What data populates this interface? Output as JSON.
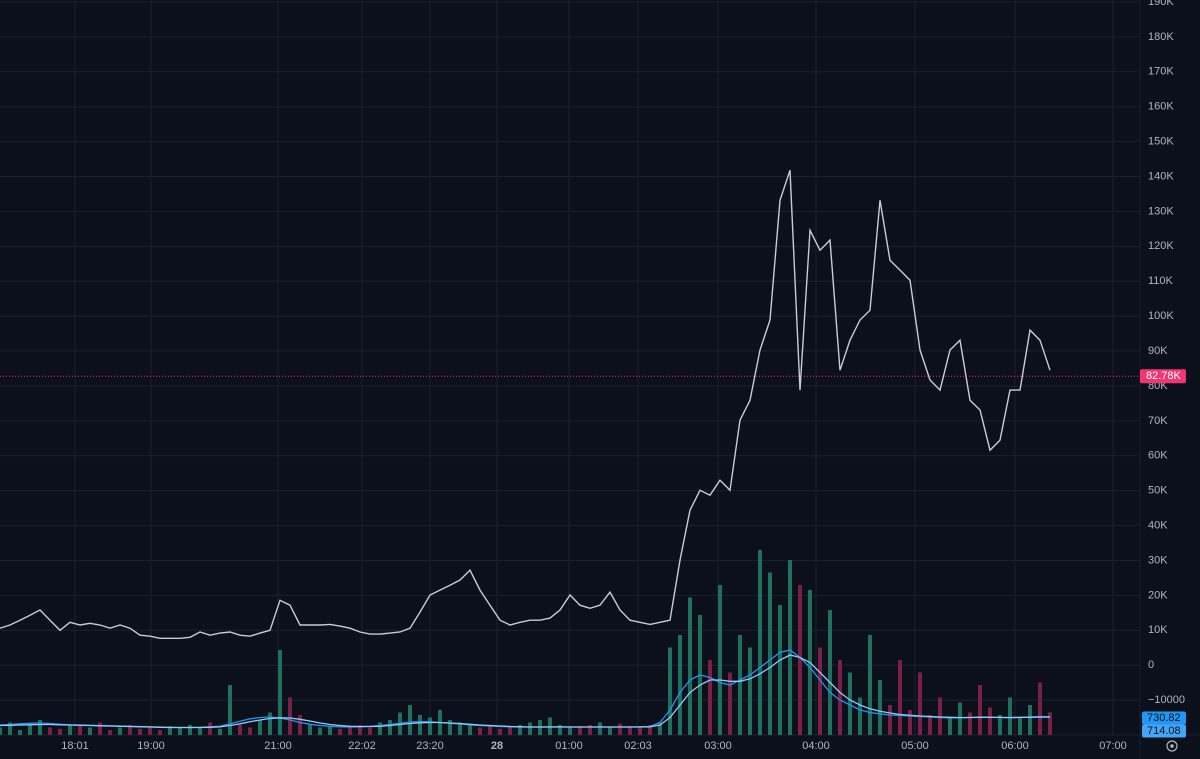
{
  "chart_data": [
    {
      "type": "line",
      "color": "#c8ccd4",
      "x": [
        0,
        1,
        2,
        3,
        4,
        5,
        6,
        7,
        8,
        9,
        10,
        11,
        12,
        13,
        14,
        15,
        16,
        17,
        18,
        19,
        20,
        21,
        22,
        23,
        24,
        25,
        26,
        27,
        28,
        29,
        30,
        31,
        32,
        33,
        34,
        35,
        36,
        37,
        38,
        39,
        40,
        41,
        42,
        43,
        44,
        45,
        46,
        47,
        48,
        49,
        50,
        51,
        52,
        53,
        54,
        55,
        56,
        57,
        58,
        59,
        60,
        61,
        62,
        63,
        64,
        65,
        66,
        67,
        68,
        69,
        70,
        71,
        72,
        73,
        74,
        75,
        76,
        77,
        78,
        79,
        80,
        81,
        82,
        83,
        84,
        85,
        86,
        87,
        88,
        89,
        90,
        91,
        92,
        93,
        94,
        95,
        96,
        97,
        98,
        99,
        100,
        101,
        102,
        103,
        104,
        105
      ],
      "values": [
        10600,
        11500,
        12900,
        14300,
        15800,
        12900,
        10000,
        12300,
        11500,
        12000,
        11500,
        10600,
        11500,
        10600,
        8600,
        8300,
        7700,
        7700,
        7700,
        8000,
        9500,
        8600,
        9200,
        9500,
        8600,
        8300,
        9200,
        10000,
        18600,
        17200,
        11500,
        11500,
        11500,
        11700,
        11200,
        10600,
        9500,
        8900,
        8900,
        9200,
        9500,
        10600,
        15200,
        20100,
        21500,
        22900,
        24400,
        27200,
        21500,
        17200,
        12900,
        11500,
        12300,
        12900,
        12900,
        13500,
        15800,
        20100,
        17200,
        16300,
        17200,
        20900,
        15800,
        12900,
        12300,
        11700,
        12300,
        12900,
        30100,
        44400,
        50100,
        48700,
        53000,
        50100,
        70200,
        75900,
        90300,
        98900,
        133200,
        141800,
        78800,
        124600,
        118900,
        121800,
        84500,
        93100,
        98900,
        101700,
        133200,
        116000,
        113200,
        110300,
        90300,
        81700,
        78800,
        90300,
        93100,
        75900,
        73100,
        61600,
        64500,
        78800,
        78800,
        96000,
        93100,
        84500
      ],
      "last_price": {
        "value": 82780,
        "label": "82.78K"
      },
      "last_price_color": "#f23674",
      "xlim": [
        0,
        114
      ],
      "xticks": [
        {
          "value": 7.5,
          "label": "18:01"
        },
        {
          "value": 15.1,
          "label": "19:00"
        },
        {
          "value": 27.8,
          "label": "21:00"
        },
        {
          "value": 36.2,
          "label": "22:02"
        },
        {
          "value": 43.0,
          "label": "23:20"
        },
        {
          "value": 49.7,
          "label": "28"
        },
        {
          "value": 56.9,
          "label": "01:00"
        },
        {
          "value": 63.8,
          "label": "02:03"
        },
        {
          "value": 71.8,
          "label": "03:00"
        },
        {
          "value": 81.6,
          "label": "04:00"
        },
        {
          "value": 91.5,
          "label": "05:00"
        },
        {
          "value": 101.5,
          "label": "06:00"
        },
        {
          "value": 111.3,
          "label": "07:00"
        }
      ],
      "ylim": [
        -20000,
        190000
      ],
      "yticks": [
        {
          "value": 190000,
          "label": "190K"
        },
        {
          "value": 180000,
          "label": "180K"
        },
        {
          "value": 170000,
          "label": "170K"
        },
        {
          "value": 160000,
          "label": "160K"
        },
        {
          "value": 150000,
          "label": "150K"
        },
        {
          "value": 140000,
          "label": "140K"
        },
        {
          "value": 130000,
          "label": "130K"
        },
        {
          "value": 120000,
          "label": "120K"
        },
        {
          "value": 110000,
          "label": "110K"
        },
        {
          "value": 100000,
          "label": "100K"
        },
        {
          "value": 90000,
          "label": "90K"
        },
        {
          "value": 80000,
          "label": "80K"
        },
        {
          "value": 70000,
          "label": "70K"
        },
        {
          "value": 60000,
          "label": "60K"
        },
        {
          "value": 50000,
          "label": "50K"
        },
        {
          "value": 40000,
          "label": "40K"
        },
        {
          "value": 30000,
          "label": "30K"
        },
        {
          "value": 20000,
          "label": "20K"
        },
        {
          "value": 10000,
          "label": "10K"
        },
        0,
        {
          "value": -10000,
          "label": "−10000"
        }
      ],
      "grid": true
    },
    {
      "type": "bar",
      "up_color": "#1f6f5c",
      "down_color": "#7a1f45",
      "values": [
        300,
        500,
        200,
        400,
        600,
        300,
        250,
        400,
        350,
        300,
        500,
        200,
        300,
        400,
        250,
        300,
        200,
        350,
        300,
        400,
        300,
        500,
        250,
        2000,
        400,
        300,
        600,
        900,
        3400,
        1500,
        800,
        400,
        300,
        350,
        250,
        300,
        400,
        300,
        500,
        600,
        900,
        1200,
        800,
        700,
        1000,
        600,
        500,
        400,
        300,
        350,
        250,
        300,
        400,
        500,
        600,
        700,
        400,
        300,
        350,
        400,
        500,
        300,
        450,
        350,
        300,
        400,
        500,
        3500,
        4000,
        5500,
        4800,
        3000,
        6000,
        2500,
        4000,
        3500,
        7400,
        6500,
        5200,
        7000,
        6000,
        5800,
        3500,
        5000,
        3000,
        2500,
        1500,
        4000,
        2200,
        1200,
        3000,
        1000,
        2500,
        800,
        1500,
        700,
        1300,
        900,
        2000,
        1100,
        800,
        1500,
        700,
        1200,
        2100,
        900
      ],
      "ylim": [
        0,
        8000
      ],
      "series": [
        {
          "color": "#2196f3",
          "values": [
            400,
            420,
            450,
            470,
            480,
            460,
            430,
            410,
            400,
            390,
            380,
            370,
            360,
            350,
            340,
            330,
            320,
            310,
            300,
            300,
            310,
            330,
            350,
            450,
            550,
            650,
            700,
            720,
            680,
            600,
            500,
            430,
            380,
            350,
            330,
            320,
            330,
            350,
            380,
            420,
            470,
            520,
            540,
            530,
            500,
            470,
            440,
            410,
            380,
            360,
            340,
            330,
            320,
            320,
            320,
            330,
            330,
            320,
            320,
            320,
            320,
            320,
            320,
            320,
            330,
            340,
            500,
            1000,
            1700,
            2200,
            2400,
            2300,
            2100,
            2000,
            2200,
            2400,
            2700,
            3000,
            3300,
            3400,
            3100,
            2700,
            2200,
            1700,
            1400,
            1200,
            1000,
            900,
            850,
            800,
            780,
            760,
            740,
            720,
            700,
            690,
            690,
            700,
            720,
            710,
            700,
            690,
            710,
            720,
            740,
            730.82
          ]
        },
        {
          "color": "#90caf9",
          "values": [
            380,
            390,
            400,
            410,
            420,
            420,
            410,
            400,
            390,
            380,
            370,
            360,
            350,
            340,
            330,
            320,
            310,
            300,
            300,
            300,
            300,
            310,
            330,
            380,
            450,
            530,
            600,
            660,
            690,
            680,
            630,
            560,
            480,
            420,
            380,
            350,
            340,
            340,
            350,
            380,
            420,
            460,
            490,
            500,
            500,
            480,
            460,
            430,
            400,
            380,
            360,
            340,
            330,
            320,
            320,
            320,
            320,
            320,
            320,
            320,
            320,
            320,
            320,
            320,
            320,
            330,
            400,
            700,
            1200,
            1700,
            2000,
            2200,
            2200,
            2150,
            2150,
            2250,
            2450,
            2700,
            3000,
            3200,
            3100,
            2900,
            2500,
            2100,
            1700,
            1400,
            1200,
            1050,
            950,
            880,
            820,
            790,
            760,
            740,
            720,
            710,
            700,
            700,
            710,
            710,
            705,
            700,
            705,
            710,
            715,
            714.08
          ]
        }
      ]
    }
  ]
}
